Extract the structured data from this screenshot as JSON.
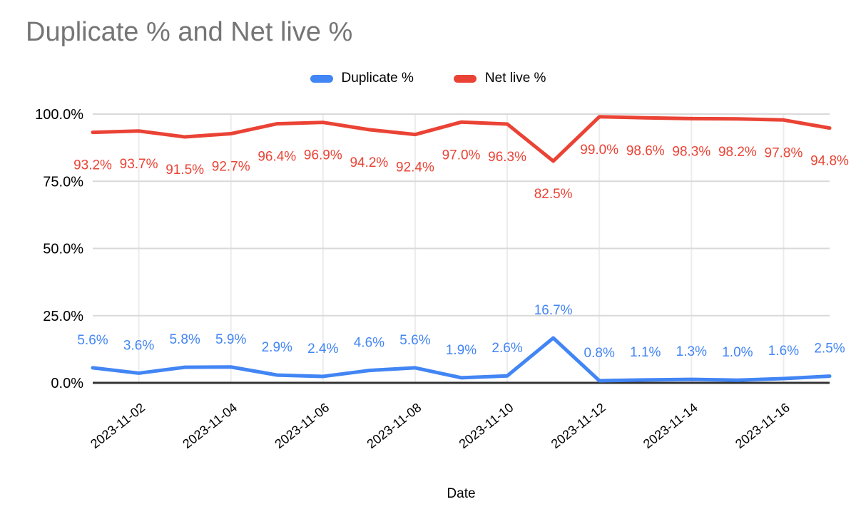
{
  "title": "Duplicate % and Net live %",
  "legend": {
    "items": [
      {
        "label": "Duplicate %",
        "color": "#4285f4"
      },
      {
        "label": "Net live %",
        "color": "#ea4335"
      }
    ]
  },
  "chart_data": {
    "type": "line",
    "title": "Duplicate % and Net live %",
    "xlabel": "Date",
    "ylabel": "",
    "x": [
      "2023-11-01",
      "2023-11-02",
      "2023-11-03",
      "2023-11-04",
      "2023-11-05",
      "2023-11-06",
      "2023-11-07",
      "2023-11-08",
      "2023-11-09",
      "2023-11-10",
      "2023-11-11",
      "2023-11-12",
      "2023-11-13",
      "2023-11-14",
      "2023-11-15",
      "2023-11-16",
      "2023-11-17"
    ],
    "series": [
      {
        "name": "Duplicate %",
        "color": "#4285f4",
        "values": [
          5.6,
          3.6,
          5.8,
          5.9,
          2.9,
          2.4,
          4.6,
          5.6,
          1.9,
          2.6,
          16.7,
          0.8,
          1.1,
          1.3,
          1.0,
          1.6,
          2.5
        ],
        "label_position": "above"
      },
      {
        "name": "Net live %",
        "color": "#ea4335",
        "values": [
          93.2,
          93.7,
          91.5,
          92.7,
          96.4,
          96.9,
          94.2,
          92.4,
          97.0,
          96.3,
          82.5,
          99.0,
          98.6,
          98.3,
          98.2,
          97.8,
          94.8
        ],
        "label_position": "below"
      }
    ],
    "ylim": [
      0,
      100
    ],
    "y_tick_values": [
      0,
      25,
      50,
      75,
      100
    ],
    "y_tick_labels": [
      "0.0%",
      "25.0%",
      "50.0%",
      "75.0%",
      "100.0%"
    ],
    "x_tick_indices": [
      1,
      3,
      5,
      7,
      9,
      11,
      13,
      15
    ],
    "x_tick_labels": [
      "2023-11-02",
      "2023-11-04",
      "2023-11-06",
      "2023-11-08",
      "2023-11-10",
      "2023-11-12",
      "2023-11-14",
      "2023-11-16"
    ],
    "grid": true,
    "legend_position": "top",
    "colors": {
      "title_text": "#757575",
      "axis_text": "#000000",
      "axis_line": "#333333",
      "h_gridline": "#d9d9d9",
      "v_gridline": "#ececec",
      "background": "#ffffff"
    }
  }
}
